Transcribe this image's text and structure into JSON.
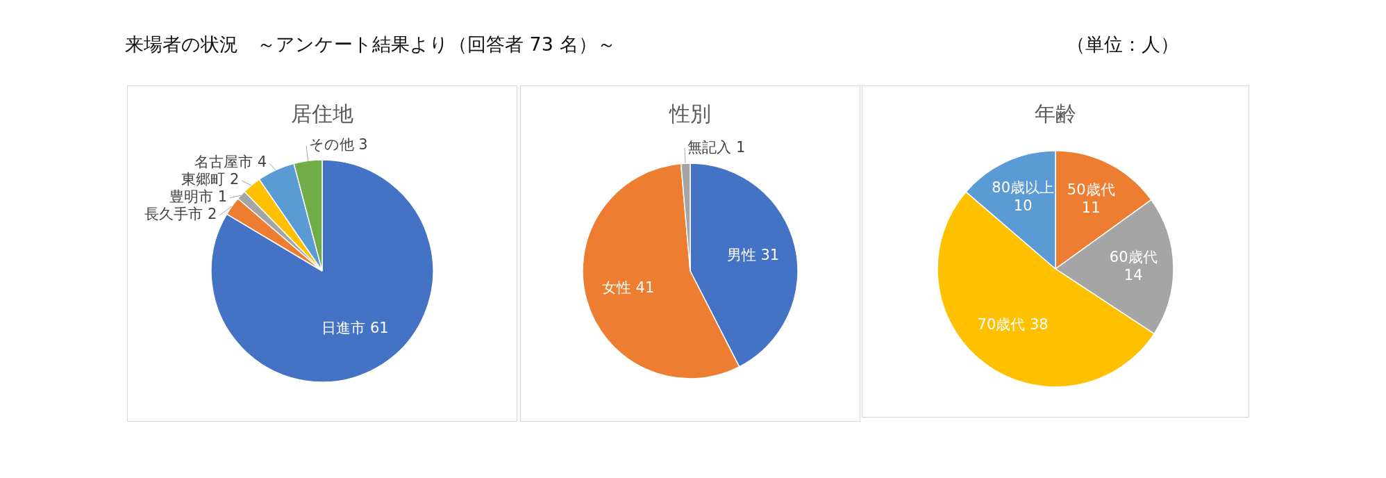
{
  "chart_data": [
    {
      "type": "pie",
      "title": "居住地",
      "categories": [
        "日進市",
        "長久手市",
        "豊明市",
        "東郷町",
        "名古屋市",
        "その他"
      ],
      "values": [
        61,
        2,
        1,
        2,
        4,
        3
      ],
      "colors": [
        "#4472c4",
        "#ed7d31",
        "#a5a5a5",
        "#ffc000",
        "#5b9bd5",
        "#70ad47"
      ],
      "data_labels": true,
      "annotations": [
        "来場者の状況　～アンケート結果より（回答者 73 名）～",
        "（単位：人）"
      ]
    },
    {
      "type": "pie",
      "title": "性別",
      "categories": [
        "男性",
        "女性",
        "無記入"
      ],
      "values": [
        31,
        41,
        1
      ],
      "colors": [
        "#4472c4",
        "#ed7d31",
        "#a5a5a5"
      ],
      "data_labels": true
    },
    {
      "type": "pie",
      "title": "年齢",
      "categories": [
        "50歳代",
        "60歳代",
        "70歳代",
        "80歳以上"
      ],
      "values": [
        11,
        14,
        38,
        10
      ],
      "colors": [
        "#ed7d31",
        "#a5a5a5",
        "#ffc000",
        "#5b9bd5"
      ],
      "data_labels": true
    }
  ]
}
